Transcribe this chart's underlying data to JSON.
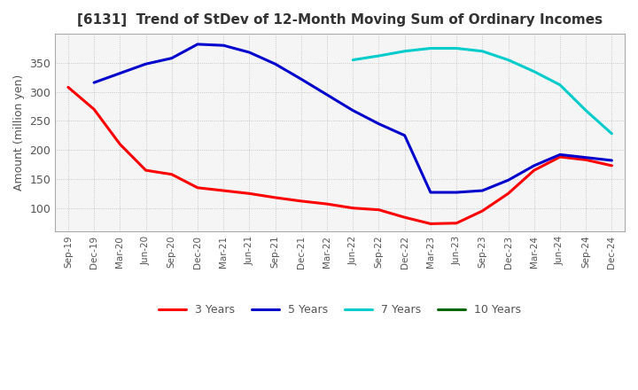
{
  "title": "[6131]  Trend of StDev of 12-Month Moving Sum of Ordinary Incomes",
  "ylabel": "Amount (million yen)",
  "title_color": "#333333",
  "background_color": "#ffffff",
  "plot_bg_color": "#f5f5f5",
  "grid_color": "#bbbbbb",
  "ylim": [
    60,
    400
  ],
  "yticks": [
    100,
    150,
    200,
    250,
    300,
    350
  ],
  "x_labels": [
    "Sep-19",
    "Dec-19",
    "Mar-20",
    "Jun-20",
    "Sep-20",
    "Dec-20",
    "Mar-21",
    "Jun-21",
    "Sep-21",
    "Dec-21",
    "Mar-22",
    "Jun-22",
    "Sep-22",
    "Dec-22",
    "Mar-23",
    "Jun-23",
    "Sep-23",
    "Dec-23",
    "Mar-24",
    "Jun-24",
    "Sep-24",
    "Dec-24"
  ],
  "line_3yr": [
    308,
    270,
    210,
    165,
    158,
    135,
    130,
    125,
    118,
    112,
    107,
    100,
    97,
    84,
    73,
    74,
    95,
    125,
    165,
    188,
    183,
    173
  ],
  "line_5yr": [
    null,
    316,
    332,
    348,
    358,
    382,
    380,
    368,
    348,
    322,
    295,
    268,
    245,
    225,
    127,
    127,
    130,
    148,
    173,
    192,
    187,
    182
  ],
  "line_7yr": [
    null,
    null,
    null,
    null,
    null,
    null,
    null,
    null,
    null,
    null,
    null,
    355,
    362,
    370,
    375,
    375,
    370,
    355,
    335,
    312,
    268,
    228
  ],
  "line_10yr": [
    null,
    null,
    null,
    null,
    null,
    null,
    null,
    null,
    null,
    null,
    null,
    null,
    null,
    null,
    null,
    null,
    null,
    null,
    null,
    null,
    null,
    null
  ],
  "colors": {
    "3yr": "#ff0000",
    "5yr": "#0000cc",
    "7yr": "#00cccc",
    "10yr": "#006600"
  },
  "legend_labels": [
    "3 Years",
    "5 Years",
    "7 Years",
    "10 Years"
  ]
}
